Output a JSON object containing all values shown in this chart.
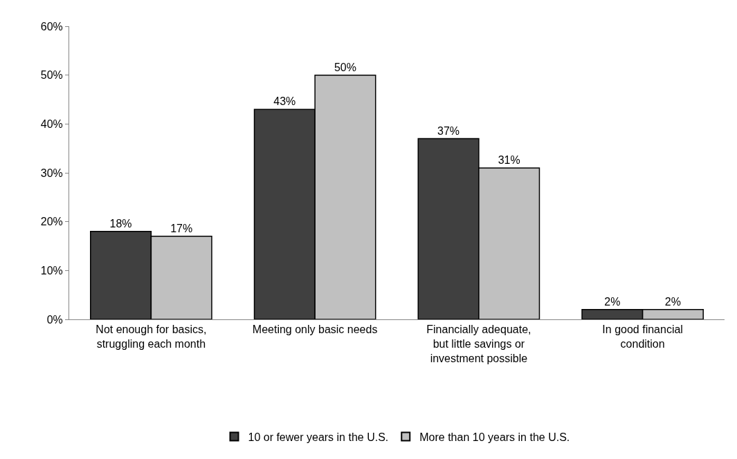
{
  "chart_data": {
    "type": "bar",
    "categories": [
      "Not enough for basics, struggling each month",
      "Meeting only basic needs",
      "Financially adequate, but little savings or investment possible",
      "In good financial condition"
    ],
    "series": [
      {
        "name": "10 or fewer years in the U.S.",
        "color": "#404040",
        "values": [
          18,
          43,
          37,
          2
        ],
        "value_labels": [
          "18%",
          "43%",
          "37%",
          "2%"
        ]
      },
      {
        "name": "More than 10 years in the U.S.",
        "color": "#c0c0c0",
        "values": [
          17,
          50,
          31,
          2
        ],
        "value_labels": [
          "17%",
          "50%",
          "31%",
          "2%"
        ]
      }
    ],
    "ylim": [
      0,
      60
    ],
    "yticks": [
      {
        "value": 0,
        "label": "0%"
      },
      {
        "value": 10,
        "label": "10%"
      },
      {
        "value": 20,
        "label": "20%"
      },
      {
        "value": 30,
        "label": "30%"
      },
      {
        "value": 40,
        "label": "40%"
      },
      {
        "value": 50,
        "label": "50%"
      },
      {
        "value": 60,
        "label": "60%"
      }
    ],
    "legend": "bottom"
  }
}
